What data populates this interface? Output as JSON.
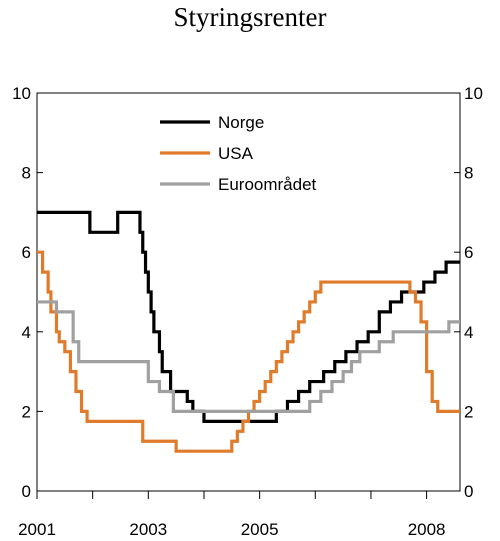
{
  "chart_data": {
    "type": "line",
    "title": "Styringsrenter",
    "xlabel": "",
    "ylabel": "",
    "xlim": [
      2001,
      2008.6
    ],
    "ylim": [
      0,
      10
    ],
    "y_ticks": [
      "0",
      "2",
      "4",
      "6",
      "8",
      "10"
    ],
    "x_tick_labels": [
      {
        "x": 2001,
        "label": "2001"
      },
      {
        "x": 2003,
        "label": "2003"
      },
      {
        "x": 2005,
        "label": "2005"
      },
      {
        "x": 2008,
        "label": "2008"
      }
    ],
    "x_minor_ticks": [
      2001,
      2002,
      2003,
      2004,
      2005,
      2006,
      2007,
      2008
    ],
    "grid": false,
    "legend_position": "top-center",
    "series": [
      {
        "name": "Norge",
        "color": "#000000",
        "step": true,
        "x": [
          2001.0,
          2001.95,
          2002.45,
          2002.85,
          2002.9,
          2002.95,
          2003.0,
          2003.05,
          2003.1,
          2003.2,
          2003.25,
          2003.4,
          2003.6,
          2003.7,
          2003.8,
          2004.0,
          2004.1,
          2005.3,
          2005.5,
          2005.7,
          2005.9,
          2006.15,
          2006.35,
          2006.55,
          2006.75,
          2006.95,
          2007.15,
          2007.35,
          2007.55,
          2007.75,
          2007.95,
          2008.15,
          2008.35,
          2008.45,
          2008.6
        ],
        "y": [
          7.0,
          6.5,
          7.0,
          6.5,
          6.0,
          5.5,
          5.0,
          4.5,
          4.0,
          3.5,
          3.0,
          2.5,
          2.5,
          2.25,
          2.0,
          1.75,
          1.75,
          2.0,
          2.25,
          2.5,
          2.75,
          3.0,
          3.25,
          3.5,
          3.75,
          4.0,
          4.5,
          4.75,
          5.0,
          5.0,
          5.25,
          5.5,
          5.75,
          5.75,
          5.75
        ]
      },
      {
        "name": "USA",
        "color": "#e07b2c",
        "step": true,
        "x": [
          2001.0,
          2001.1,
          2001.2,
          2001.25,
          2001.35,
          2001.4,
          2001.5,
          2001.6,
          2001.7,
          2001.8,
          2001.9,
          2002.0,
          2002.9,
          2003.5,
          2004.5,
          2004.6,
          2004.7,
          2004.8,
          2004.9,
          2005.0,
          2005.1,
          2005.2,
          2005.3,
          2005.4,
          2005.5,
          2005.6,
          2005.7,
          2005.8,
          2005.9,
          2006.0,
          2006.1,
          2006.2,
          2006.3,
          2006.4,
          2006.5,
          2007.7,
          2007.8,
          2007.9,
          2008.0,
          2008.05,
          2008.1,
          2008.2,
          2008.3,
          2008.6
        ],
        "y": [
          6.0,
          5.5,
          5.0,
          4.5,
          4.0,
          3.75,
          3.5,
          3.0,
          2.5,
          2.0,
          1.75,
          1.75,
          1.25,
          1.0,
          1.25,
          1.5,
          1.75,
          2.0,
          2.25,
          2.5,
          2.75,
          3.0,
          3.25,
          3.5,
          3.75,
          4.0,
          4.25,
          4.5,
          4.75,
          5.0,
          5.25,
          5.25,
          5.25,
          5.25,
          5.25,
          5.0,
          4.75,
          4.25,
          3.0,
          3.0,
          2.25,
          2.0,
          2.0,
          2.0
        ]
      },
      {
        "name": "Euroområdet",
        "color": "#a0a0a0",
        "step": true,
        "x": [
          2001.0,
          2001.35,
          2001.65,
          2001.75,
          2001.85,
          2002.0,
          2003.0,
          2003.2,
          2003.45,
          2005.9,
          2006.1,
          2006.3,
          2006.5,
          2006.65,
          2006.8,
          2006.95,
          2007.15,
          2007.4,
          2008.4,
          2008.6
        ],
        "y": [
          4.75,
          4.5,
          3.75,
          3.25,
          3.25,
          3.25,
          2.75,
          2.5,
          2.0,
          2.25,
          2.5,
          2.75,
          3.0,
          3.25,
          3.5,
          3.5,
          3.75,
          4.0,
          4.25,
          4.25
        ]
      }
    ]
  }
}
